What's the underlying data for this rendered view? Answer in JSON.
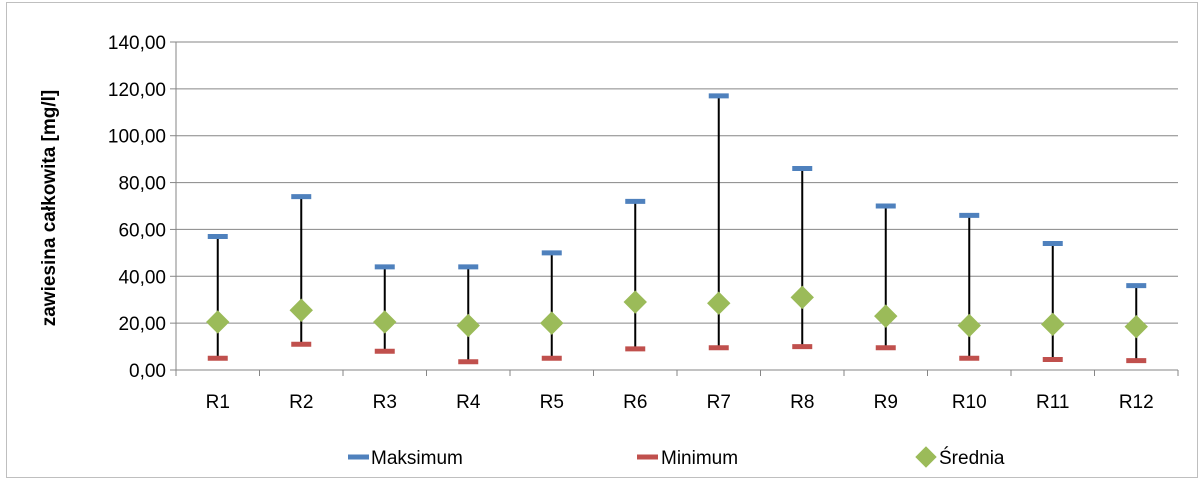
{
  "chart_data": {
    "type": "stock",
    "categories": [
      "R1",
      "R2",
      "R3",
      "R4",
      "R5",
      "R6",
      "R7",
      "R8",
      "R9",
      "R10",
      "R11",
      "R12"
    ],
    "series": [
      {
        "name": "Maksimum",
        "values": [
          57,
          74,
          44,
          44,
          50,
          72,
          117,
          86,
          70,
          66,
          54,
          36
        ]
      },
      {
        "name": "Minimum",
        "values": [
          5,
          11,
          8,
          3.5,
          5,
          9,
          9.5,
          10,
          9.5,
          5,
          4.5,
          4
        ]
      },
      {
        "name": "Średnia",
        "values": [
          20.5,
          25.5,
          20.5,
          19,
          20,
          29,
          28.5,
          31,
          23,
          19,
          19.5,
          18.5
        ]
      }
    ],
    "ylabel": "zawiesina całkowita [mg/l]",
    "ylim": [
      0,
      140
    ],
    "yticks": [
      "0,00",
      "20,00",
      "40,00",
      "60,00",
      "80,00",
      "100,00",
      "120,00",
      "140,00"
    ],
    "grid": true,
    "legend_position": "bottom",
    "colors": {
      "max": "#4f81bd",
      "min": "#c0504d",
      "avg": "#9bbb59",
      "grid": "#868686",
      "whisker": "#000000"
    }
  }
}
